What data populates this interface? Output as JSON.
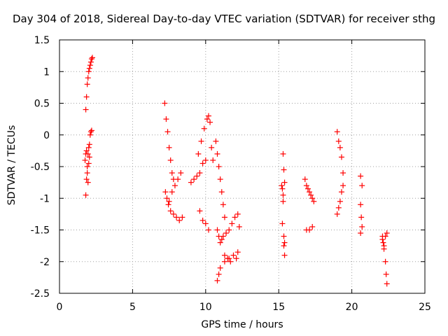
{
  "chart_data": {
    "type": "scatter",
    "title": "Day 304 of 2018, Sidereal Day-to-day VTEC variation (SDTVAR) for receiver sthg",
    "xlabel": "GPS time / hours",
    "ylabel": "SDTVAR / TECUs",
    "xlim": [
      0,
      25
    ],
    "ylim": [
      -2.5,
      1.5
    ],
    "xticks": [
      0,
      5,
      10,
      15,
      20,
      25
    ],
    "yticks": [
      1.5,
      1,
      0.5,
      0,
      -0.5,
      -1,
      -1.5,
      -2,
      -2.5
    ],
    "xtick_labels": [
      "0",
      "5",
      "10",
      "15",
      "20",
      "25"
    ],
    "ytick_labels": [
      "1.5",
      "1",
      "0.5",
      "0",
      "-0.5",
      "-1",
      "-1.5",
      "-2",
      "-2.5"
    ],
    "grid": true,
    "marker": "+",
    "marker_color": "#ff0000",
    "series": [
      {
        "name": "sthg",
        "x": [
          1.8,
          1.85,
          1.9,
          1.95,
          2.0,
          2.05,
          2.1,
          2.15,
          2.2,
          1.8,
          1.85,
          1.9,
          1.95,
          2.0,
          2.05,
          2.1,
          2.15,
          2.2,
          2.25,
          1.75,
          1.8,
          1.85,
          1.9,
          1.95,
          2.0,
          2.05,
          7.2,
          7.3,
          7.4,
          7.5,
          7.6,
          7.7,
          7.8,
          7.25,
          7.35,
          7.45,
          7.6,
          7.8,
          8.0,
          8.2,
          8.4,
          7.5,
          7.7,
          7.9,
          8.1,
          8.3,
          9.0,
          9.2,
          9.4,
          9.6,
          9.8,
          10.0,
          9.5,
          9.7,
          9.9,
          10.1,
          10.2,
          10.3,
          10.4,
          10.5,
          9.6,
          9.8,
          10.0,
          10.2,
          10.7,
          10.8,
          10.9,
          11.0,
          11.1,
          11.2,
          11.3,
          10.8,
          10.9,
          11.0,
          11.1,
          11.2,
          11.4,
          11.6,
          11.8,
          12.0,
          12.2,
          12.3,
          10.8,
          10.9,
          11.0,
          11.3,
          11.6,
          11.9,
          12.2,
          11.3,
          11.5,
          11.7,
          12.1,
          15.3,
          15.35,
          15.4,
          15.3,
          15.25,
          15.35,
          15.4,
          15.35,
          15.4,
          15.3,
          15.2,
          15.25,
          16.8,
          16.9,
          17.0,
          17.1,
          17.2,
          17.3,
          17.4,
          16.9,
          17.1,
          17.3,
          19.0,
          19.1,
          19.2,
          19.3,
          19.4,
          19.0,
          19.1,
          19.2,
          19.3,
          19.4,
          20.6,
          20.7,
          20.6,
          20.65,
          20.7,
          20.6,
          22.1,
          22.15,
          22.2,
          22.3,
          22.35,
          22.4,
          22.1,
          22.2,
          22.3,
          22.4
        ],
        "y": [
          -0.95,
          -0.7,
          -0.5,
          -0.3,
          -0.2,
          -0.15,
          0.0,
          0.05,
          0.07,
          0.4,
          0.6,
          0.8,
          0.9,
          1.0,
          1.05,
          1.1,
          1.15,
          1.2,
          1.22,
          -0.4,
          -0.3,
          -0.25,
          -0.6,
          -0.75,
          -0.45,
          -0.35,
          0.5,
          0.25,
          0.05,
          -0.2,
          -0.4,
          -0.6,
          -0.7,
          -0.9,
          -1.0,
          -1.1,
          -1.2,
          -1.25,
          -1.3,
          -1.35,
          -1.3,
          -1.05,
          -0.9,
          -0.8,
          -0.7,
          -0.6,
          -0.75,
          -0.7,
          -0.65,
          -0.6,
          -0.45,
          -0.4,
          -0.3,
          -0.1,
          0.1,
          0.25,
          0.3,
          0.2,
          -0.2,
          -0.4,
          -1.2,
          -1.35,
          -1.4,
          -1.5,
          -0.1,
          -0.3,
          -0.5,
          -0.7,
          -0.9,
          -1.1,
          -1.3,
          -1.5,
          -1.6,
          -1.7,
          -1.65,
          -1.6,
          -1.55,
          -1.5,
          -1.4,
          -1.3,
          -1.25,
          -1.45,
          -2.3,
          -2.2,
          -2.1,
          -2.0,
          -1.95,
          -1.9,
          -1.85,
          -1.9,
          -1.95,
          -2.0,
          -1.95,
          -0.3,
          -0.55,
          -0.75,
          -1.05,
          -1.4,
          -1.75,
          -1.9,
          -1.6,
          -1.7,
          -0.95,
          -0.8,
          -0.85,
          -0.7,
          -0.8,
          -0.85,
          -0.9,
          -0.95,
          -1.0,
          -1.05,
          -1.5,
          -1.5,
          -1.45,
          0.05,
          -0.1,
          -0.2,
          -0.35,
          -0.6,
          -1.25,
          -1.15,
          -1.05,
          -0.9,
          -0.8,
          -0.65,
          -0.8,
          -1.1,
          -1.3,
          -1.45,
          -1.55,
          -1.6,
          -1.7,
          -1.8,
          -2.0,
          -2.2,
          -2.35,
          -1.65,
          -1.75,
          -1.6,
          -1.55
        ]
      }
    ]
  }
}
